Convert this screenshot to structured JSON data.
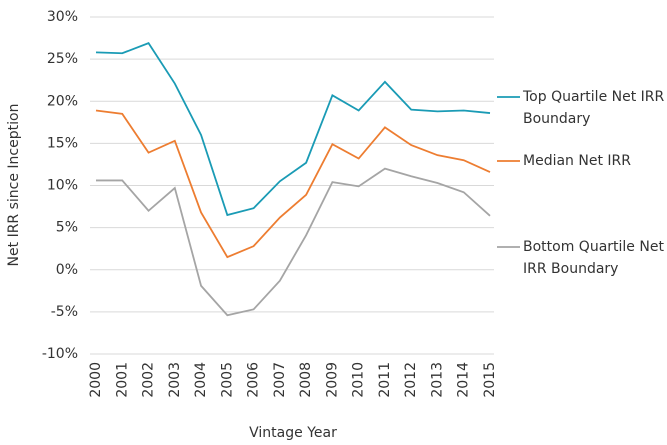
{
  "chart_data": {
    "type": "line",
    "x_label": "Vintage Year",
    "y_label": "Net IRR since Inception",
    "categories": [
      "2000",
      "2001",
      "2002",
      "2003",
      "2004",
      "2005",
      "2006",
      "2007",
      "2008",
      "2009",
      "2010",
      "2011",
      "2012",
      "2013",
      "2014",
      "2015"
    ],
    "series": [
      {
        "name": "Top Quartile Net IRR Boundary",
        "color": "#1a9bb5",
        "values": [
          25.8,
          25.7,
          26.9,
          22.1,
          16.0,
          6.5,
          7.3,
          10.5,
          12.7,
          20.7,
          18.9,
          22.3,
          19.0,
          18.8,
          18.9,
          18.6
        ]
      },
      {
        "name": "Median Net IRR",
        "color": "#ed7d31",
        "values": [
          18.9,
          18.5,
          13.9,
          15.3,
          6.8,
          1.5,
          2.8,
          6.2,
          8.9,
          14.9,
          13.2,
          16.9,
          14.8,
          13.6,
          13.0,
          11.6
        ]
      },
      {
        "name": "Bottom Quartile Net IRR Boundary",
        "color": "#a5a5a5",
        "values": [
          10.6,
          10.6,
          7.0,
          9.7,
          -1.9,
          -5.4,
          -4.7,
          -1.3,
          4.1,
          10.4,
          9.9,
          12.0,
          11.1,
          10.3,
          9.2,
          6.4
        ]
      }
    ],
    "ylim": [
      -10,
      30
    ],
    "yticks": [
      {
        "value": -10,
        "label": "-10%"
      },
      {
        "value": -5,
        "label": "-5%"
      },
      {
        "value": 0,
        "label": "0%"
      },
      {
        "value": 5,
        "label": "5%"
      },
      {
        "value": 10,
        "label": "10%"
      },
      {
        "value": 15,
        "label": "15%"
      },
      {
        "value": 20,
        "label": "20%"
      },
      {
        "value": 25,
        "label": "25%"
      },
      {
        "value": 30,
        "label": "30%"
      }
    ],
    "grid": true,
    "legend": "right"
  }
}
